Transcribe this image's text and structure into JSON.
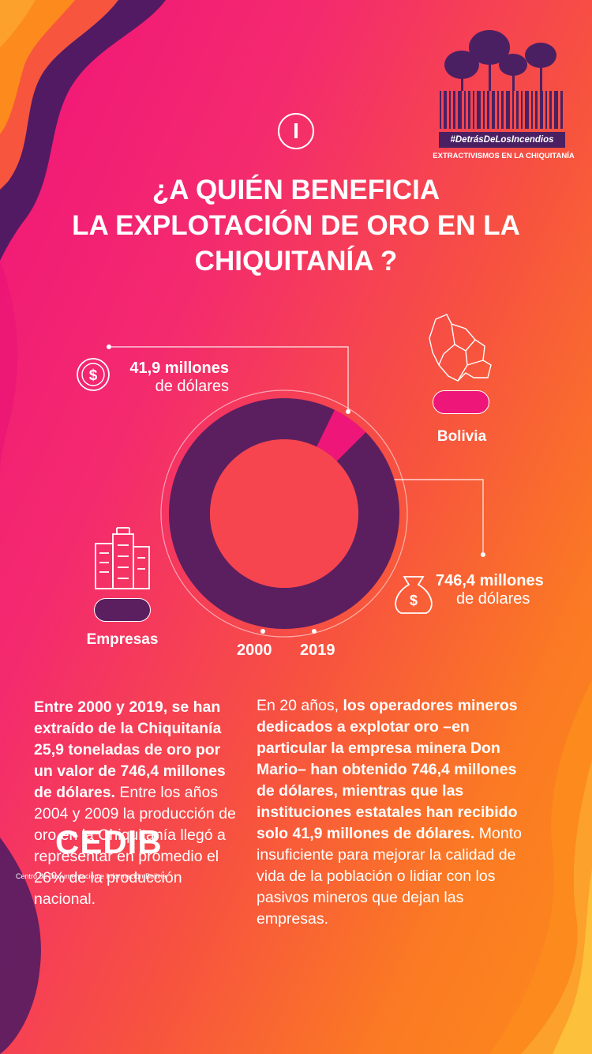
{
  "section": {
    "number": "I"
  },
  "title": {
    "line1": "¿A QUIÉN BENEFICIA",
    "line2": "LA EXPLOTACIÓN DE ORO EN LA",
    "line3": "CHIQUITANÍA ?"
  },
  "logo": {
    "hashtag": "#DetrásDeLosIncendios",
    "subtitle": "EXTRACTIVISMOS EN LA CHIQUITANÍA"
  },
  "amounts": {
    "bolivia": {
      "line1": "41,9 millones",
      "line2": "de dólares",
      "icon": "dollar-coin-icon"
    },
    "empresas": {
      "line1": "746,4 millones",
      "line2": "de dólares",
      "icon": "money-bag-icon"
    }
  },
  "legend": {
    "bolivia": {
      "label": "Bolivia",
      "color": "#ee1678"
    },
    "empresas": {
      "label": "Empresas",
      "color": "#5b1f60"
    }
  },
  "timeline": {
    "start": "2000",
    "end": "2019"
  },
  "chart_data": {
    "type": "pie",
    "labels": [
      "Bolivia",
      "Empresas"
    ],
    "values": [
      41.9,
      746.4
    ],
    "colors": [
      "#ee1678",
      "#5b1f60"
    ]
  },
  "text_left": {
    "bold": "Entre 2000 y 2019, se han extraído de la Chiquitanía 25,9 toneladas de oro por un valor de 746,4 millones de dólares.",
    "normal": " Entre los años 2004 y 2009 la producción de oro en la Chiquitanía llegó a representar en promedio el 26% de la producción nacional."
  },
  "text_right": {
    "normal1": "En 20 años, ",
    "bold": "los operadores mineros dedicados a explotar oro –en particular la empresa minera Don Mario– han obtenido 746,4 millones de dólares, mientras que las instituciones estatales han recibido solo 41,9 millones de dólares.",
    "normal2": " Monto insuficiente para mejorar la calidad de vida de la población o lidiar con los pasivos mineros que dejan las empresas."
  },
  "footer": {
    "org": "CEDIB",
    "org_full": "Centro de Documentación e Información Bolivia"
  },
  "colors": {
    "pink": "#f0147a",
    "orange": "#fc8a1c",
    "purple": "#5b1f60",
    "dark_purple": "#3c1456"
  }
}
